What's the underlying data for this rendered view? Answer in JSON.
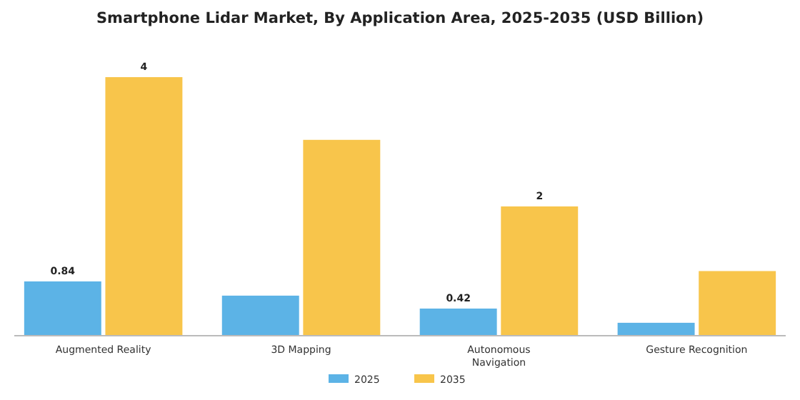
{
  "chart_data": {
    "type": "bar",
    "title": "Smartphone Lidar Market, By Application Area, 2025-2035 (USD Billion)",
    "categories": [
      "Augmented Reality",
      "3D Mapping",
      "Autonomous Navigation",
      "Gesture Recognition"
    ],
    "series": [
      {
        "name": "2025",
        "color": "#5cb3e6",
        "values": [
          0.84,
          0.62,
          0.42,
          0.2
        ],
        "value_labels": [
          "0.84",
          null,
          "0.42",
          null
        ]
      },
      {
        "name": "2035",
        "color": "#f8c54b",
        "values": [
          4,
          3.03,
          2,
          1.0
        ],
        "value_labels": [
          "4",
          null,
          "2",
          null
        ]
      }
    ],
    "legend": "bottom"
  }
}
